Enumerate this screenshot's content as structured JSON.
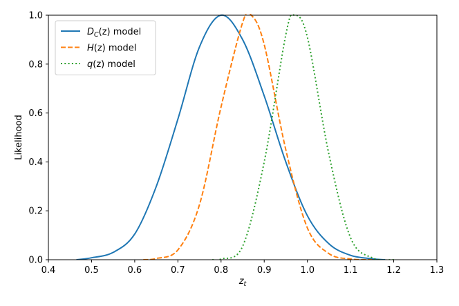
{
  "chart_data": {
    "type": "line",
    "title": "",
    "xlabel": "z_t",
    "ylabel": "Likelihood",
    "xlim": [
      0.4,
      1.3
    ],
    "ylim": [
      0.0,
      1.0
    ],
    "xticks": [
      "0.4",
      "0.5",
      "0.6",
      "0.7",
      "0.8",
      "0.9",
      "1.0",
      "1.1",
      "1.2",
      "1.3"
    ],
    "yticks": [
      "0.0",
      "0.2",
      "0.4",
      "0.6",
      "0.8",
      "1.0"
    ],
    "grid": false,
    "legend_position": "top-left",
    "series": [
      {
        "name": "D_C(z) model",
        "legend": {
          "main": "D",
          "sub": "C",
          "rest": "(z) model"
        },
        "color": "#1f77b4",
        "style": "solid",
        "x": [
          0.465,
          0.5,
          0.55,
          0.6,
          0.65,
          0.7,
          0.75,
          0.8,
          0.85,
          0.9,
          0.95,
          1.0,
          1.05,
          1.1,
          1.15,
          1.18
        ],
        "y": [
          0.0,
          0.008,
          0.03,
          0.105,
          0.3,
          0.575,
          0.87,
          1.0,
          0.9,
          0.67,
          0.4,
          0.18,
          0.065,
          0.018,
          0.004,
          0.0
        ]
      },
      {
        "name": "H(z) model",
        "legend": {
          "main": "H",
          "sub": "",
          "rest": "(z) model"
        },
        "color": "#ff7f0e",
        "style": "dashed",
        "x": [
          0.62,
          0.65,
          0.7,
          0.75,
          0.8,
          0.85,
          0.87,
          0.9,
          0.95,
          1.0,
          1.05,
          1.1,
          1.15
        ],
        "y": [
          0.0,
          0.005,
          0.04,
          0.225,
          0.625,
          0.97,
          1.0,
          0.88,
          0.45,
          0.13,
          0.025,
          0.003,
          0.0
        ]
      },
      {
        "name": "q(z) model",
        "legend": {
          "main": "q",
          "sub": "",
          "rest": "(z) model"
        },
        "color": "#2ca02c",
        "style": "dotted",
        "x": [
          0.78,
          0.8,
          0.85,
          0.9,
          0.95,
          0.97,
          1.0,
          1.05,
          1.1,
          1.15,
          1.2
        ],
        "y": [
          0.0,
          0.003,
          0.055,
          0.4,
          0.92,
          1.0,
          0.91,
          0.43,
          0.09,
          0.008,
          0.0
        ]
      }
    ]
  }
}
